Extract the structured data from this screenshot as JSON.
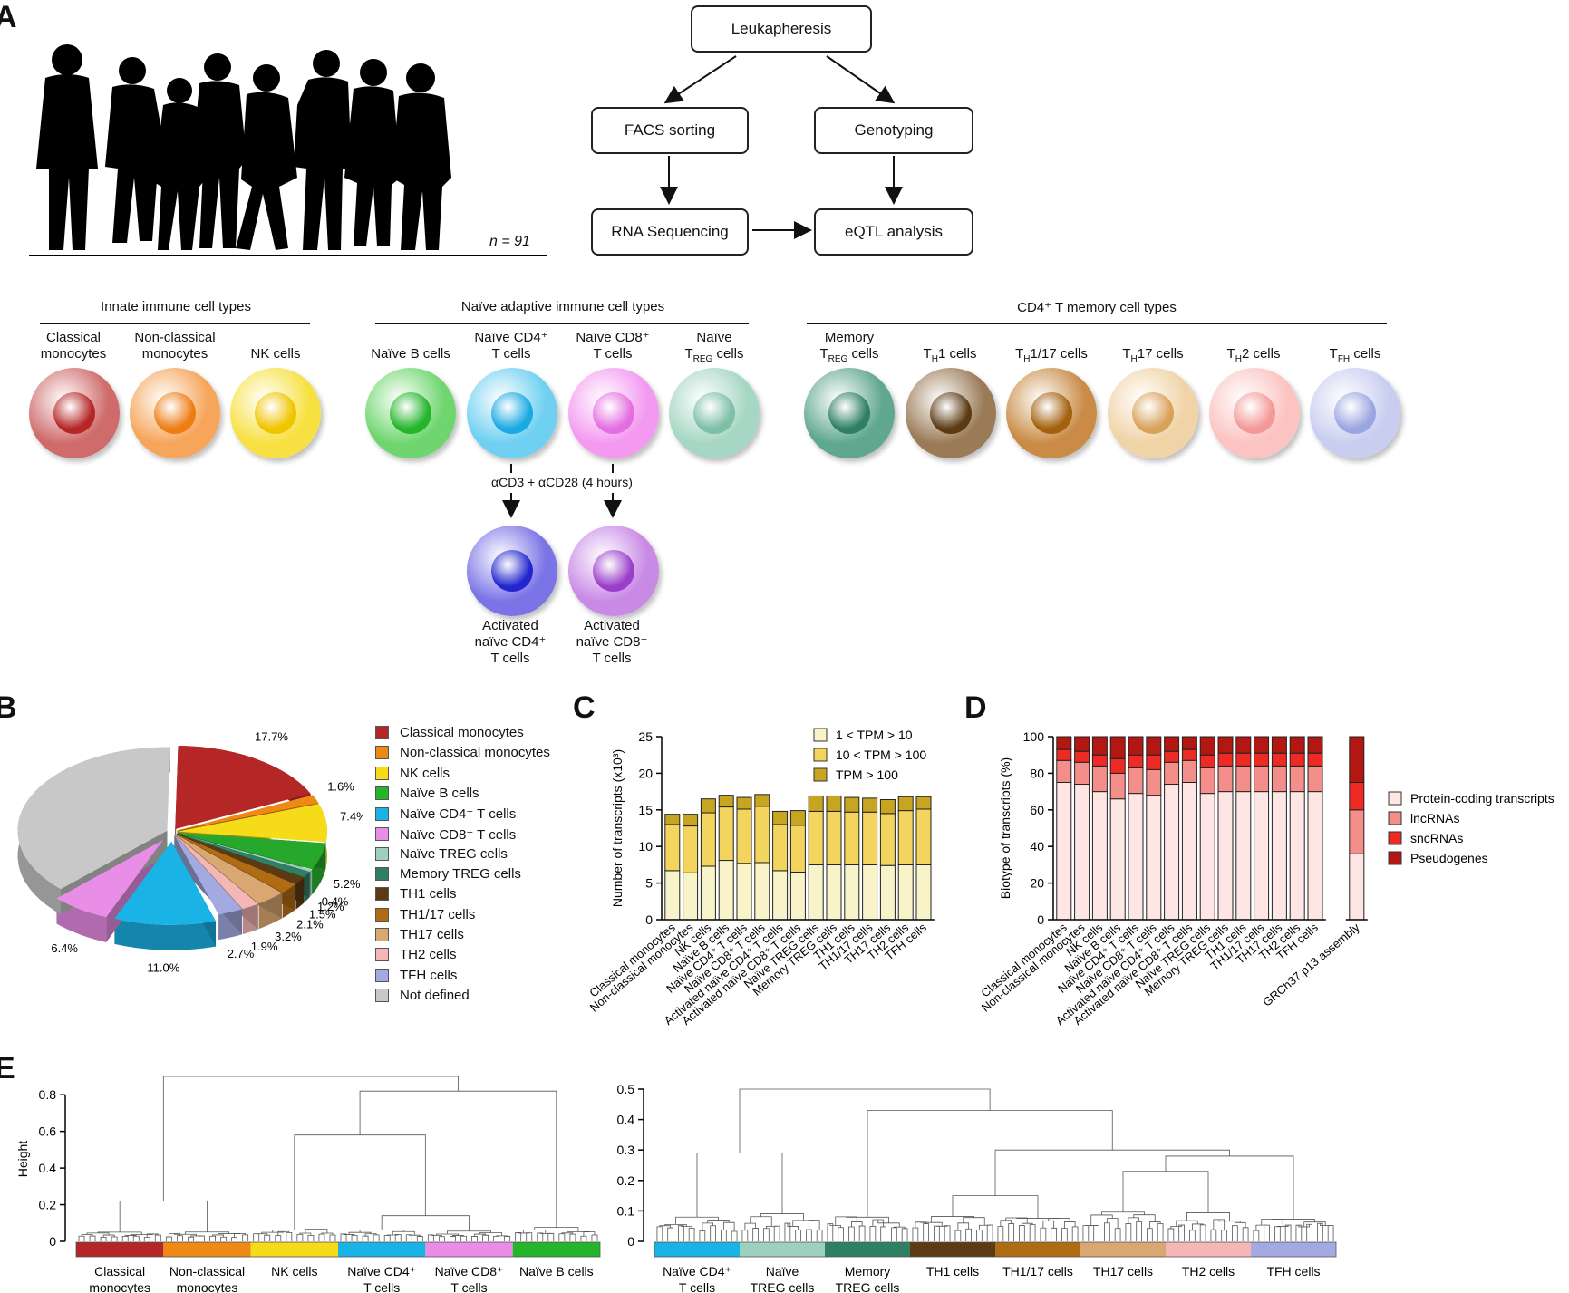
{
  "panels": {
    "a": "A",
    "b": "B",
    "c": "C",
    "d": "D",
    "e": "E"
  },
  "panelA": {
    "n_label": "n = 91",
    "flow": {
      "leukapheresis": "Leukapheresis",
      "facs": "FACS sorting",
      "genotyping": "Genotyping",
      "rnaseq": "RNA Sequencing",
      "eqtl": "eQTL analysis"
    },
    "groups": {
      "innate": "Innate immune cell types",
      "naive": "Naïve adaptive immune cell types",
      "memory": "CD4⁺ T memory cell types"
    },
    "cells": [
      {
        "label": "Classical monocytes",
        "color": "#cf6b6b",
        "nuc": "#b52626"
      },
      {
        "label": "Non-classical monocytes",
        "color": "#f6a55a",
        "nuc": "#ee7d14"
      },
      {
        "label": "NK cells",
        "color": "#f7e142",
        "nuc": "#f1c400"
      },
      {
        "label": "Naïve B cells",
        "color": "#6fd66f",
        "nuc": "#25b52b"
      },
      {
        "label": "Naïve CD4⁺ T cells",
        "color": "#6fd0f2",
        "nuc": "#1aa9e3"
      },
      {
        "label": "Naïve CD8⁺ T cells",
        "color": "#f39af0",
        "nuc": "#e46ee1"
      },
      {
        "label": "Naïve TREG cells",
        "color": "#a6d6c4",
        "nuc": "#7dbfa7"
      },
      {
        "label": "Memory TREG cells",
        "color": "#5fa78e",
        "nuc": "#2f7f63"
      },
      {
        "label": "TH1 cells",
        "color": "#9a7a57",
        "nuc": "#5c3b14"
      },
      {
        "label": "TH1/17 cells",
        "color": "#c98b45",
        "nuc": "#a3600d"
      },
      {
        "label": "TH17 cells",
        "color": "#f0d3a6",
        "nuc": "#d9a25a"
      },
      {
        "label": "TH2 cells",
        "color": "#fbc3c1",
        "nuc": "#f39a98"
      },
      {
        "label": "TFH cells",
        "color": "#c9cef0",
        "nuc": "#9ba5e0"
      }
    ],
    "stim": "αCD3 + αCD28 (4 hours)",
    "activated": [
      {
        "label": "Activated naïve CD4⁺ T cells",
        "color": "#7b74e6",
        "nuc": "#2326cf"
      },
      {
        "label": "Activated naïve CD8⁺ T cells",
        "color": "#c98ae6",
        "nuc": "#9a3fc9"
      }
    ]
  },
  "panelB": {
    "chart_data": {
      "type": "pie",
      "slices": [
        {
          "label": "Classical monocytes",
          "value": 17.7,
          "color": "#b52626",
          "text": "17.7%"
        },
        {
          "label": "Non-classical monocytes",
          "value": 1.6,
          "color": "#ee8a14",
          "text": "1.6%"
        },
        {
          "label": "NK cells",
          "value": 7.4,
          "color": "#f6dc18",
          "text": "7.4%"
        },
        {
          "label": "Naïve B cells",
          "value": 5.2,
          "color": "#25a82b",
          "text": "5.2%"
        },
        {
          "label": "Naïve TREG cells",
          "value": 0.4,
          "color": "#9fd0bd",
          "text": "0.4%"
        },
        {
          "label": "Memory TREG cells",
          "value": 1.2,
          "color": "#2f7f63",
          "text": "1.2%"
        },
        {
          "label": "TH1 cells",
          "value": 1.5,
          "color": "#5c3b14",
          "text": "1.5%"
        },
        {
          "label": "TH1/17 cells",
          "value": 2.1,
          "color": "#b06c12",
          "text": "2.1%"
        },
        {
          "label": "TH17 cells",
          "value": 3.2,
          "color": "#d9a872",
          "text": "3.2%"
        },
        {
          "label": "TH2 cells",
          "value": 1.9,
          "color": "#f5b7b5",
          "text": "1.9%"
        },
        {
          "label": "TFH cells",
          "value": 2.7,
          "color": "#a3aae2",
          "text": "2.7%"
        },
        {
          "label": "Naïve CD4⁺ T cells",
          "value": 11.0,
          "color": "#1ab3e6",
          "text": "11.0%"
        },
        {
          "label": "Naïve CD8⁺ T cells",
          "value": 6.4,
          "color": "#e98ee6",
          "text": "6.4%"
        },
        {
          "label": "Not defined",
          "value": 37.7,
          "color": "#c8c8c8",
          "text": ""
        }
      ]
    },
    "legend": [
      {
        "label": "Classical monocytes",
        "color": "#b52626"
      },
      {
        "label": "Non-classical monocytes",
        "color": "#ee8a14"
      },
      {
        "label": "NK cells",
        "color": "#f6dc18"
      },
      {
        "label": "Naïve B cells",
        "color": "#25b52b"
      },
      {
        "label": "Naïve CD4⁺ T cells",
        "color": "#1ab3e6"
      },
      {
        "label": "Naïve CD8⁺ T cells",
        "color": "#e98ee6"
      },
      {
        "label": "Naïve TREG cells",
        "color": "#9fd0bd"
      },
      {
        "label": "Memory TREG cells",
        "color": "#2f7f63"
      },
      {
        "label": "TH1 cells",
        "color": "#5c3b14"
      },
      {
        "label": "TH1/17 cells",
        "color": "#b06c12"
      },
      {
        "label": "TH17 cells",
        "color": "#d9a872"
      },
      {
        "label": "TH2 cells",
        "color": "#f5b7b5"
      },
      {
        "label": "TFH cells",
        "color": "#a3aae2"
      },
      {
        "label": "Not defined",
        "color": "#c8c8c8"
      }
    ]
  },
  "panelC": {
    "chart_data": {
      "type": "bar",
      "stacked": true,
      "ylabel": "Number of transcripts (x10³)",
      "ylim": [
        0,
        25
      ],
      "yticks": [
        0,
        5,
        10,
        15,
        20,
        25
      ],
      "categories": [
        "Classical monocytes",
        "Non-classical monocytes",
        "NK cells",
        "Naïve B cells",
        "Naïve CD4⁺ T cells",
        "Naïve CD8⁺ T cells",
        "Activated naïve CD4⁺ T cells",
        "Activated naïve CD8⁺ T cells",
        "Naïve TREG cells",
        "Memory TREG cells",
        "TH1 cells",
        "TH1/17 cells",
        "TH17 cells",
        "TH2 cells",
        "TFH cells"
      ],
      "series": [
        {
          "name": "1 < TPM > 10",
          "color": "#f8f3c8",
          "values": [
            6.7,
            6.4,
            7.3,
            8.1,
            7.7,
            7.8,
            6.7,
            6.5,
            7.5,
            7.5,
            7.5,
            7.5,
            7.4,
            7.5,
            7.5
          ]
        },
        {
          "name": "10 < TPM > 100",
          "color": "#f2d45e",
          "values": [
            6.3,
            6.4,
            7.3,
            7.3,
            7.4,
            7.7,
            6.3,
            6.4,
            7.3,
            7.3,
            7.2,
            7.2,
            7.1,
            7.4,
            7.6
          ]
        },
        {
          "name": "TPM > 100",
          "color": "#c8a520",
          "values": [
            1.4,
            1.6,
            1.9,
            1.6,
            1.6,
            1.6,
            1.8,
            2.0,
            2.1,
            2.1,
            2.0,
            1.9,
            1.9,
            1.9,
            1.7
          ]
        }
      ]
    }
  },
  "panelD": {
    "chart_data": {
      "type": "bar",
      "stacked": true,
      "ylabel": "Biotype of transcripts (%)",
      "ylim": [
        0,
        100
      ],
      "yticks": [
        0,
        20,
        40,
        60,
        80,
        100
      ],
      "categories": [
        "Classical monocytes",
        "Non-classical monocytes",
        "NK cells",
        "Naïve B cells",
        "Naïve CD4⁺ T cells",
        "Naïve CD8⁺ T cells",
        "Activated naïve CD4⁺ T cells",
        "Activated naïve CD8⁺ T cells",
        "Naïve TREG cells",
        "Memory TREG cells",
        "TH1 cells",
        "TH1/17 cells",
        "TH17 cells",
        "TH2 cells",
        "TFH cells"
      ],
      "extra_category": "GRCh37.p13 assembly",
      "series": [
        {
          "name": "Protein-coding transcripts",
          "color": "#fde6e4",
          "values": [
            75,
            74,
            70,
            66,
            69,
            68,
            74,
            75,
            69,
            70,
            70,
            70,
            70,
            70,
            70
          ],
          "extra": 36
        },
        {
          "name": "lncRNAs",
          "color": "#f38e8a",
          "values": [
            12,
            12,
            14,
            14,
            14,
            14,
            12,
            12,
            14,
            14,
            14,
            14,
            14,
            14,
            14
          ],
          "extra": 24
        },
        {
          "name": "sncRNAs",
          "color": "#ee2a24",
          "values": [
            6,
            6,
            6,
            8,
            7,
            8,
            6,
            6,
            7,
            7,
            7,
            7,
            7,
            7,
            7
          ],
          "extra": 15
        },
        {
          "name": "Pseudogenes",
          "color": "#b21712",
          "values": [
            7,
            8,
            10,
            12,
            10,
            10,
            8,
            7,
            10,
            9,
            9,
            9,
            9,
            9,
            9
          ],
          "extra": 25
        }
      ]
    }
  },
  "panelE": {
    "chart_data": [
      {
        "type": "dendrogram",
        "ylabel": "Height",
        "yticks": [
          0,
          0.2,
          0.4,
          0.6,
          0.8
        ],
        "ylim": [
          0,
          0.9
        ],
        "groups": [
          "Classical monocytes",
          "Non-classical monocytes",
          "NK cells",
          "Naïve CD4⁺ T cells",
          "Naïve CD8⁺ T cells",
          "Naïve B cells"
        ],
        "colors": [
          "#b52626",
          "#ee8a14",
          "#f6dc18",
          "#1ab3e6",
          "#e98ee6",
          "#25b52b"
        ]
      },
      {
        "type": "dendrogram",
        "yticks": [
          0,
          0.1,
          0.2,
          0.3,
          0.4,
          0.5
        ],
        "ylim": [
          0,
          0.5
        ],
        "groups": [
          "Naïve CD4⁺ T cells",
          "Naïve TREG cells",
          "Memory TREG cells",
          "TH1 cells",
          "TH1/17 cells",
          "TH17 cells",
          "TH2 cells",
          "TFH cells"
        ],
        "colors": [
          "#1ab3e6",
          "#9fd0bd",
          "#2f7f63",
          "#5c3b14",
          "#b06c12",
          "#d9a872",
          "#f5b7b5",
          "#a3aae2"
        ]
      }
    ]
  }
}
